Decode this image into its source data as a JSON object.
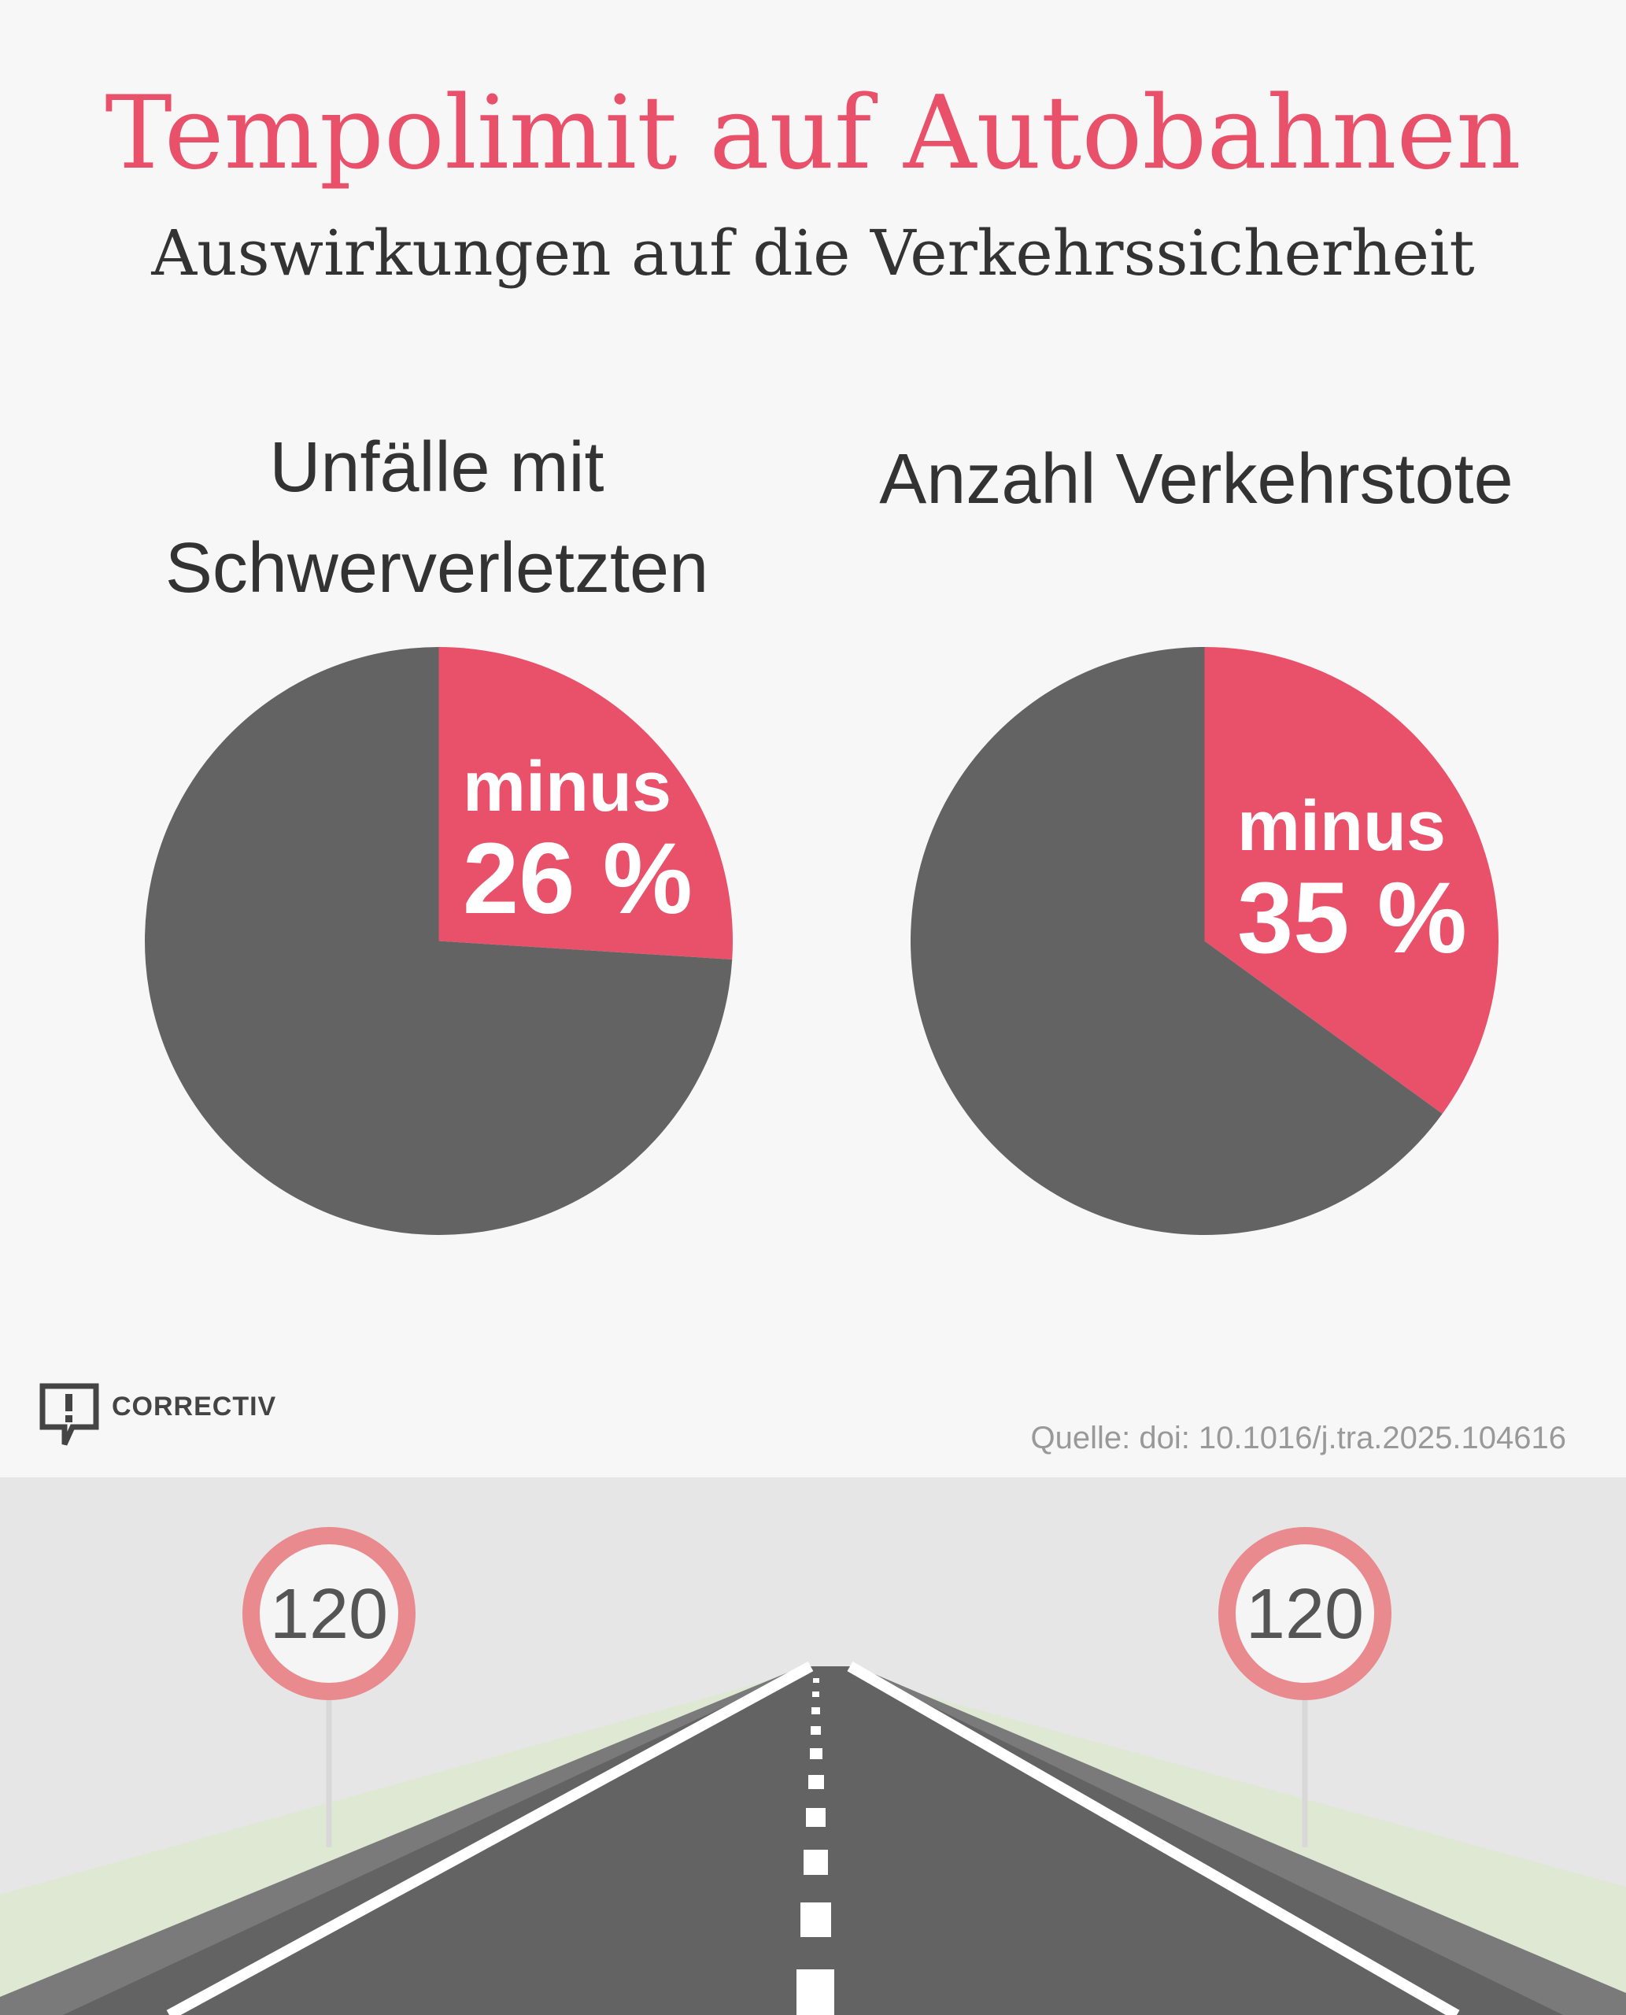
{
  "header": {
    "title": "Tempolimit auf Autobahnen",
    "subtitle": "Auswirkungen auf die Verkehrssicherheit"
  },
  "colors": {
    "accent": "#e9506a",
    "rest": "#636363",
    "road": "#636363"
  },
  "chart_data": [
    {
      "type": "pie",
      "title": "Unfälle mit Schwerverletzten",
      "slices": [
        {
          "label_top": "minus",
          "label_value": "26 %",
          "value": 26,
          "color": "#e9506a"
        },
        {
          "value": 74,
          "color": "#636363"
        }
      ]
    },
    {
      "type": "pie",
      "title": "Anzahl Verkehrstote",
      "slices": [
        {
          "label_top": "minus",
          "label_value": "35 %",
          "value": 35,
          "color": "#e9506a"
        },
        {
          "value": 65,
          "color": "#636363"
        }
      ]
    }
  ],
  "footer": {
    "logo_text": "CORRECTIV",
    "source": "Quelle: doi: 10.1016/j.tra.2025.104616"
  },
  "illustration": {
    "signs": [
      "120",
      "120"
    ]
  }
}
